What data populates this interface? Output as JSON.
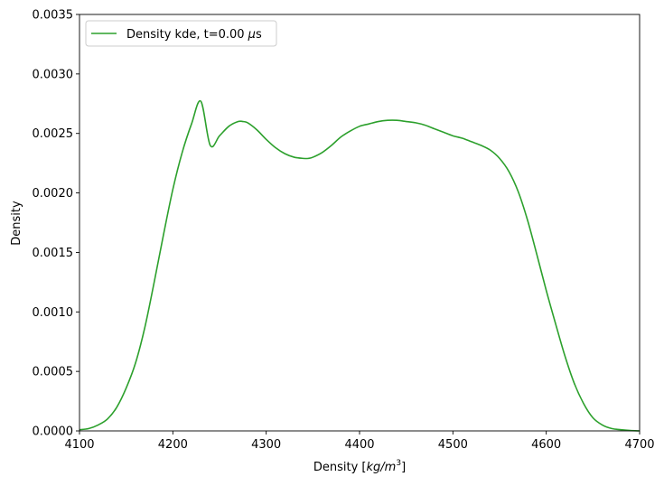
{
  "chart_data": {
    "type": "line",
    "title": "",
    "xlabel": "Density [kg/m³]",
    "xlabel_parts": {
      "prefix": "Density [",
      "unit_main": "kg/m",
      "unit_exp": "3",
      "suffix": "]"
    },
    "ylabel": "Density",
    "xlim": [
      4100,
      4700
    ],
    "ylim": [
      0,
      0.0035
    ],
    "xticks": [
      4100,
      4200,
      4300,
      4400,
      4500,
      4600,
      4700
    ],
    "xtick_labels": [
      "4100",
      "4200",
      "4300",
      "4400",
      "4500",
      "4600",
      "4700"
    ],
    "yticks": [
      0,
      0.0005,
      0.001,
      0.0015,
      0.002,
      0.0025,
      0.003,
      0.0035
    ],
    "ytick_labels": [
      "0.0000",
      "0.0005",
      "0.0010",
      "0.0015",
      "0.0020",
      "0.0025",
      "0.0030",
      "0.0035"
    ],
    "grid": false,
    "legend_position": "upper-left",
    "series": [
      {
        "name": "Density kde, t=0.00 μs",
        "legend_prefix": "Density kde, t=0.00 ",
        "legend_mu": "μ",
        "legend_suffix": "s",
        "color": "#2ca02c",
        "x": [
          4100,
          4110,
          4120,
          4130,
          4140,
          4150,
          4160,
          4170,
          4180,
          4190,
          4200,
          4210,
          4220,
          4230,
          4240,
          4250,
          4260,
          4270,
          4275,
          4280,
          4290,
          4300,
          4310,
          4320,
          4330,
          4340,
          4345,
          4350,
          4360,
          4370,
          4380,
          4390,
          4400,
          4410,
          4420,
          4430,
          4440,
          4450,
          4460,
          4470,
          4480,
          4490,
          4500,
          4510,
          4520,
          4530,
          4540,
          4550,
          4560,
          4570,
          4580,
          4590,
          4600,
          4610,
          4620,
          4630,
          4640,
          4650,
          4660,
          4670,
          4680,
          4690,
          4700
        ],
        "y": [
          1e-05,
          2e-05,
          5e-05,
          0.0001,
          0.0002,
          0.00036,
          0.00057,
          0.00087,
          0.00125,
          0.00165,
          0.00203,
          0.00234,
          0.00258,
          0.00277,
          0.0024,
          0.00248,
          0.00256,
          0.0026,
          0.0026,
          0.00259,
          0.00253,
          0.00245,
          0.00238,
          0.00233,
          0.0023,
          0.00229,
          0.00229,
          0.0023,
          0.00234,
          0.0024,
          0.00247,
          0.00252,
          0.00256,
          0.00258,
          0.0026,
          0.00261,
          0.00261,
          0.0026,
          0.00259,
          0.00257,
          0.00254,
          0.00251,
          0.00248,
          0.00246,
          0.00243,
          0.0024,
          0.00236,
          0.00229,
          0.00218,
          0.00201,
          0.00177,
          0.00148,
          0.00118,
          0.0009,
          0.00063,
          0.0004,
          0.00023,
          0.00011,
          5e-05,
          2e-05,
          1e-05,
          3e-06,
          0.0
        ]
      }
    ]
  }
}
